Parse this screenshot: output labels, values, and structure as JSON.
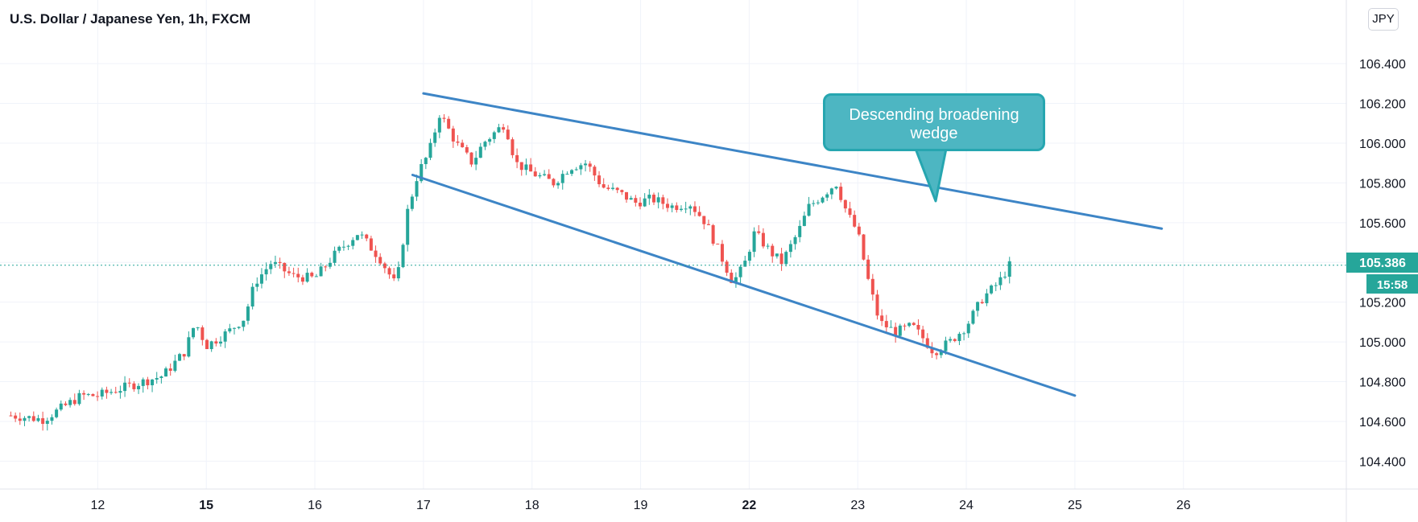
{
  "header": {
    "title": "U.S. Dollar / Japanese Yen, 1h, FXCM"
  },
  "scale": {
    "currency": "JPY"
  },
  "annotation": {
    "text": "Descending broadening wedge"
  },
  "price_label": {
    "value": "105.386",
    "countdown": "15:58"
  },
  "colors": {
    "up": "#26a69a",
    "down": "#ef5350",
    "trendline": "#3d85c6",
    "callout_fill": "#4db6c2",
    "callout_border": "#26a6b0",
    "price_tag": "#26a69a"
  },
  "chart_data": {
    "type": "candlestick",
    "title": "U.S. Dollar / Japanese Yen, 1h, FXCM",
    "interval": "1h",
    "ylim": [
      104.26,
      106.72
    ],
    "y_ticks": [
      "106.400",
      "106.200",
      "106.000",
      "105.800",
      "105.600",
      "105.400",
      "105.200",
      "105.000",
      "104.800",
      "104.600",
      "104.400"
    ],
    "x_ticks": [
      "12",
      "15",
      "16",
      "17",
      "18",
      "19",
      "22",
      "23",
      "24",
      "25",
      "26"
    ],
    "x_tick_day_index": [
      1,
      2,
      3,
      4,
      5,
      6,
      7,
      8,
      9,
      10,
      11
    ],
    "x_range_days": [
      0.1,
      12.5
    ],
    "last_price": 105.386,
    "series": [
      {
        "day": 0.2,
        "close": 104.63
      },
      {
        "day": 0.5,
        "close": 104.61
      },
      {
        "day": 0.85,
        "close": 104.73
      },
      {
        "day": 1.0,
        "close": 104.73
      },
      {
        "day": 1.3,
        "close": 104.78
      },
      {
        "day": 1.6,
        "close": 104.83
      },
      {
        "day": 1.8,
        "close": 104.95
      },
      {
        "day": 1.9,
        "close": 105.1
      },
      {
        "day": 2.0,
        "close": 104.98
      },
      {
        "day": 2.2,
        "close": 105.05
      },
      {
        "day": 2.35,
        "close": 105.12
      },
      {
        "day": 2.45,
        "close": 105.3
      },
      {
        "day": 2.6,
        "close": 105.4
      },
      {
        "day": 2.8,
        "close": 105.33
      },
      {
        "day": 3.0,
        "close": 105.32
      },
      {
        "day": 3.2,
        "close": 105.45
      },
      {
        "day": 3.4,
        "close": 105.55
      },
      {
        "day": 3.6,
        "close": 105.42
      },
      {
        "day": 3.75,
        "close": 105.28
      },
      {
        "day": 3.85,
        "close": 105.65
      },
      {
        "day": 3.95,
        "close": 105.85
      },
      {
        "day": 4.05,
        "close": 105.95
      },
      {
        "day": 4.15,
        "close": 106.15
      },
      {
        "day": 4.3,
        "close": 106.0
      },
      {
        "day": 4.45,
        "close": 105.9
      },
      {
        "day": 4.55,
        "close": 106.0
      },
      {
        "day": 4.75,
        "close": 106.1
      },
      {
        "day": 4.85,
        "close": 105.9
      },
      {
        "day": 5.0,
        "close": 105.85
      },
      {
        "day": 5.2,
        "close": 105.8
      },
      {
        "day": 5.35,
        "close": 105.88
      },
      {
        "day": 5.5,
        "close": 105.9
      },
      {
        "day": 5.65,
        "close": 105.78
      },
      {
        "day": 5.8,
        "close": 105.75
      },
      {
        "day": 5.95,
        "close": 105.7
      },
      {
        "day": 6.1,
        "close": 105.72
      },
      {
        "day": 6.3,
        "close": 105.68
      },
      {
        "day": 6.45,
        "close": 105.7
      },
      {
        "day": 6.6,
        "close": 105.6
      },
      {
        "day": 6.75,
        "close": 105.42
      },
      {
        "day": 6.85,
        "close": 105.3
      },
      {
        "day": 6.95,
        "close": 105.38
      },
      {
        "day": 7.05,
        "close": 105.55
      },
      {
        "day": 7.2,
        "close": 105.45
      },
      {
        "day": 7.3,
        "close": 105.4
      },
      {
        "day": 7.45,
        "close": 105.55
      },
      {
        "day": 7.55,
        "close": 105.68
      },
      {
        "day": 7.7,
        "close": 105.75
      },
      {
        "day": 7.8,
        "close": 105.8
      },
      {
        "day": 7.9,
        "close": 105.65
      },
      {
        "day": 8.0,
        "close": 105.55
      },
      {
        "day": 8.1,
        "close": 105.3
      },
      {
        "day": 8.2,
        "close": 105.1
      },
      {
        "day": 8.35,
        "close": 105.05
      },
      {
        "day": 8.5,
        "close": 105.08
      },
      {
        "day": 8.6,
        "close": 105.02
      },
      {
        "day": 8.7,
        "close": 104.95
      },
      {
        "day": 8.85,
        "close": 105.0
      },
      {
        "day": 9.0,
        "close": 105.08
      },
      {
        "day": 9.15,
        "close": 105.22
      },
      {
        "day": 9.3,
        "close": 105.3
      },
      {
        "day": 9.4,
        "close": 105.386
      }
    ],
    "trendlines": [
      {
        "from": {
          "day": 4.0,
          "price": 106.25
        },
        "to": {
          "day": 10.8,
          "price": 105.57
        }
      },
      {
        "from": {
          "day": 3.9,
          "price": 105.84
        },
        "to": {
          "day": 10.0,
          "price": 104.73
        }
      }
    ],
    "annotations": [
      "Descending broadening wedge"
    ]
  }
}
